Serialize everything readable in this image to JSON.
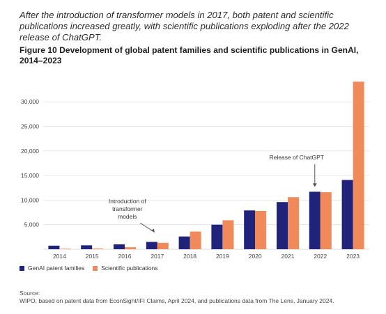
{
  "intro_text": "After the introduction of transformer models in 2017, both patent and scientific publications increased greatly, with scientific publications exploding after the 2022 release of ChatGPT.",
  "figure_title": "Figure 10 Development of global patent families and scientific publications in GenAI, 2014–2023",
  "colors": {
    "patents": "#1f237a",
    "publications": "#f08a5b",
    "grid": "#e1e1e1"
  },
  "legend": {
    "patents_label": "GenAI patent families",
    "publications_label": "Scientific publications"
  },
  "source": {
    "label": "Source:",
    "text": "WIPO, based on patent data from EconSight/IFI Claims, April 2024, and publications data from The Lens, January 2024."
  },
  "chart_data": {
    "type": "bar",
    "categories": [
      "2014",
      "2015",
      "2016",
      "2017",
      "2018",
      "2019",
      "2020",
      "2021",
      "2022",
      "2023"
    ],
    "series": [
      {
        "name": "GenAI patent families",
        "values": [
          733,
          800,
          1000,
          1500,
          2600,
          5000,
          7900,
          9600,
          11700,
          14100
        ]
      },
      {
        "name": "Scientific publications",
        "values": [
          100,
          150,
          400,
          1300,
          3600,
          5900,
          7800,
          10600,
          11600,
          34100
        ]
      }
    ],
    "ylim": [
      0,
      34000
    ],
    "yticks": [
      5000,
      10000,
      15000,
      20000,
      25000,
      30000
    ],
    "ytick_labels": [
      "5,000",
      "10,000",
      "15,000",
      "20,000",
      "25,000",
      "30,000"
    ],
    "grid": true,
    "annotations": [
      {
        "text_lines": [
          "Introduction of",
          "transformer",
          "models"
        ],
        "category": "2017",
        "target_value": 1500
      },
      {
        "text_lines": [
          "Release of ChatGPT"
        ],
        "category": "2022",
        "target_value": 11700
      }
    ]
  }
}
